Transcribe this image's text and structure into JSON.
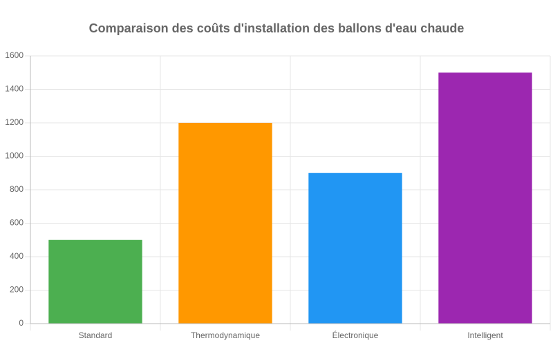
{
  "chart_data": {
    "type": "bar",
    "title": "Comparaison des coûts d'installation des ballons d'eau chaude",
    "categories": [
      "Standard",
      "Thermodynamique",
      "Électronique",
      "Intelligent"
    ],
    "values": [
      500,
      1200,
      900,
      1500
    ],
    "colors": [
      "#4caf50",
      "#ff9800",
      "#2196f3",
      "#9c27b0"
    ],
    "ylim": [
      0,
      1600
    ],
    "yticks": [
      0,
      200,
      400,
      600,
      800,
      1000,
      1200,
      1400,
      1600
    ],
    "grid": true
  }
}
